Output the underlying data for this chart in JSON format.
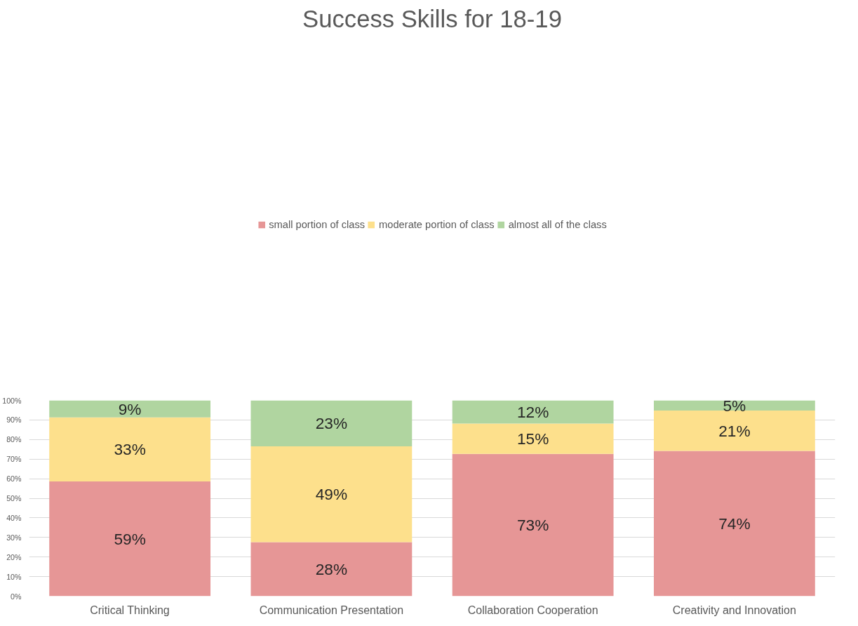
{
  "chart_data": {
    "type": "bar",
    "title": "Success Skills for 18-19",
    "stacked": true,
    "categories": [
      "Critical Thinking",
      "Communication Presentation",
      "Collaboration Cooperation",
      "Creativity and Innovation"
    ],
    "series": [
      {
        "name": "small portion of class",
        "color": "#e69696",
        "values": [
          58.6,
          27.6,
          72.7,
          74.2
        ],
        "value_labels": [
          "59%",
          "28%",
          "73%",
          "74%"
        ]
      },
      {
        "name": "moderate portion of class",
        "color": "#fde08c",
        "values": [
          32.7,
          48.9,
          15.5,
          20.6
        ],
        "value_labels": [
          "33%",
          "49%",
          "15%",
          "21%"
        ]
      },
      {
        "name": "almost all of the class",
        "color": "#b0d5a0",
        "values": [
          8.7,
          23.5,
          11.8,
          5.2
        ],
        "value_labels": [
          "9%",
          "23%",
          "12%",
          "5%"
        ]
      }
    ],
    "ylim": [
      0,
      100
    ],
    "yticks": [
      {
        "value": 0,
        "label": "0%"
      },
      {
        "value": 10,
        "label": "10%"
      },
      {
        "value": 20,
        "label": "20%"
      },
      {
        "value": 30,
        "label": "30%"
      },
      {
        "value": 40,
        "label": "40%"
      },
      {
        "value": 50,
        "label": "50%"
      },
      {
        "value": 60,
        "label": "60%"
      },
      {
        "value": 70,
        "label": "70%"
      },
      {
        "value": 80,
        "label": "80%"
      },
      {
        "value": 90,
        "label": "90%"
      },
      {
        "value": 100,
        "label": "100%"
      }
    ],
    "grid": "y",
    "legend": "top"
  }
}
